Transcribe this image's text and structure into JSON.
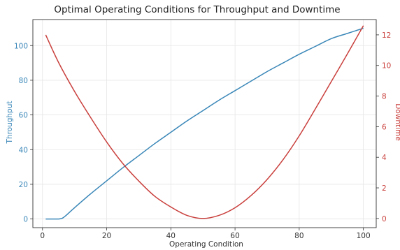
{
  "chart_data": {
    "type": "line",
    "title": "Optimal Operating Conditions for Throughput and Downtime",
    "xlabel": "Operating Condition",
    "ylabel_left": "Throughput",
    "ylabel_right": "Downtime",
    "xlim": [
      -3,
      104
    ],
    "ylim_left": [
      -5,
      115
    ],
    "ylim_right": [
      -0.6,
      13.0
    ],
    "xticks": [
      0,
      20,
      40,
      60,
      80,
      100
    ],
    "yticks_left": [
      0,
      20,
      40,
      60,
      80,
      100
    ],
    "yticks_right": [
      0,
      2,
      4,
      6,
      8,
      10,
      12
    ],
    "grid": true,
    "colors": {
      "left": "#3a87b8",
      "right": "#c9403d",
      "text": "#333333"
    },
    "series": [
      {
        "name": "Throughput",
        "axis": "left",
        "color": "#3a87b8",
        "x": [
          1,
          3,
          5,
          6,
          7,
          10,
          15,
          20,
          25,
          30,
          35,
          40,
          45,
          50,
          55,
          60,
          65,
          70,
          75,
          80,
          85,
          90,
          95,
          100
        ],
        "y": [
          0,
          0,
          0,
          0.3,
          1.5,
          6.5,
          14.5,
          22,
          29.5,
          36.5,
          43.5,
          50,
          56.5,
          62.5,
          68.5,
          74,
          79.5,
          85,
          90,
          95,
          99.5,
          104,
          107,
          110
        ]
      },
      {
        "name": "Downtime",
        "axis": "right",
        "color": "#c9403d",
        "x": [
          1,
          5,
          10,
          15,
          20,
          25,
          30,
          35,
          40,
          45,
          50,
          55,
          60,
          65,
          70,
          75,
          80,
          85,
          90,
          95,
          100
        ],
        "y": [
          12.0,
          10.2,
          8.3,
          6.6,
          5.0,
          3.6,
          2.45,
          1.45,
          0.75,
          0.2,
          0.0,
          0.2,
          0.7,
          1.5,
          2.55,
          3.85,
          5.4,
          7.15,
          8.95,
          10.75,
          12.6
        ]
      }
    ]
  }
}
